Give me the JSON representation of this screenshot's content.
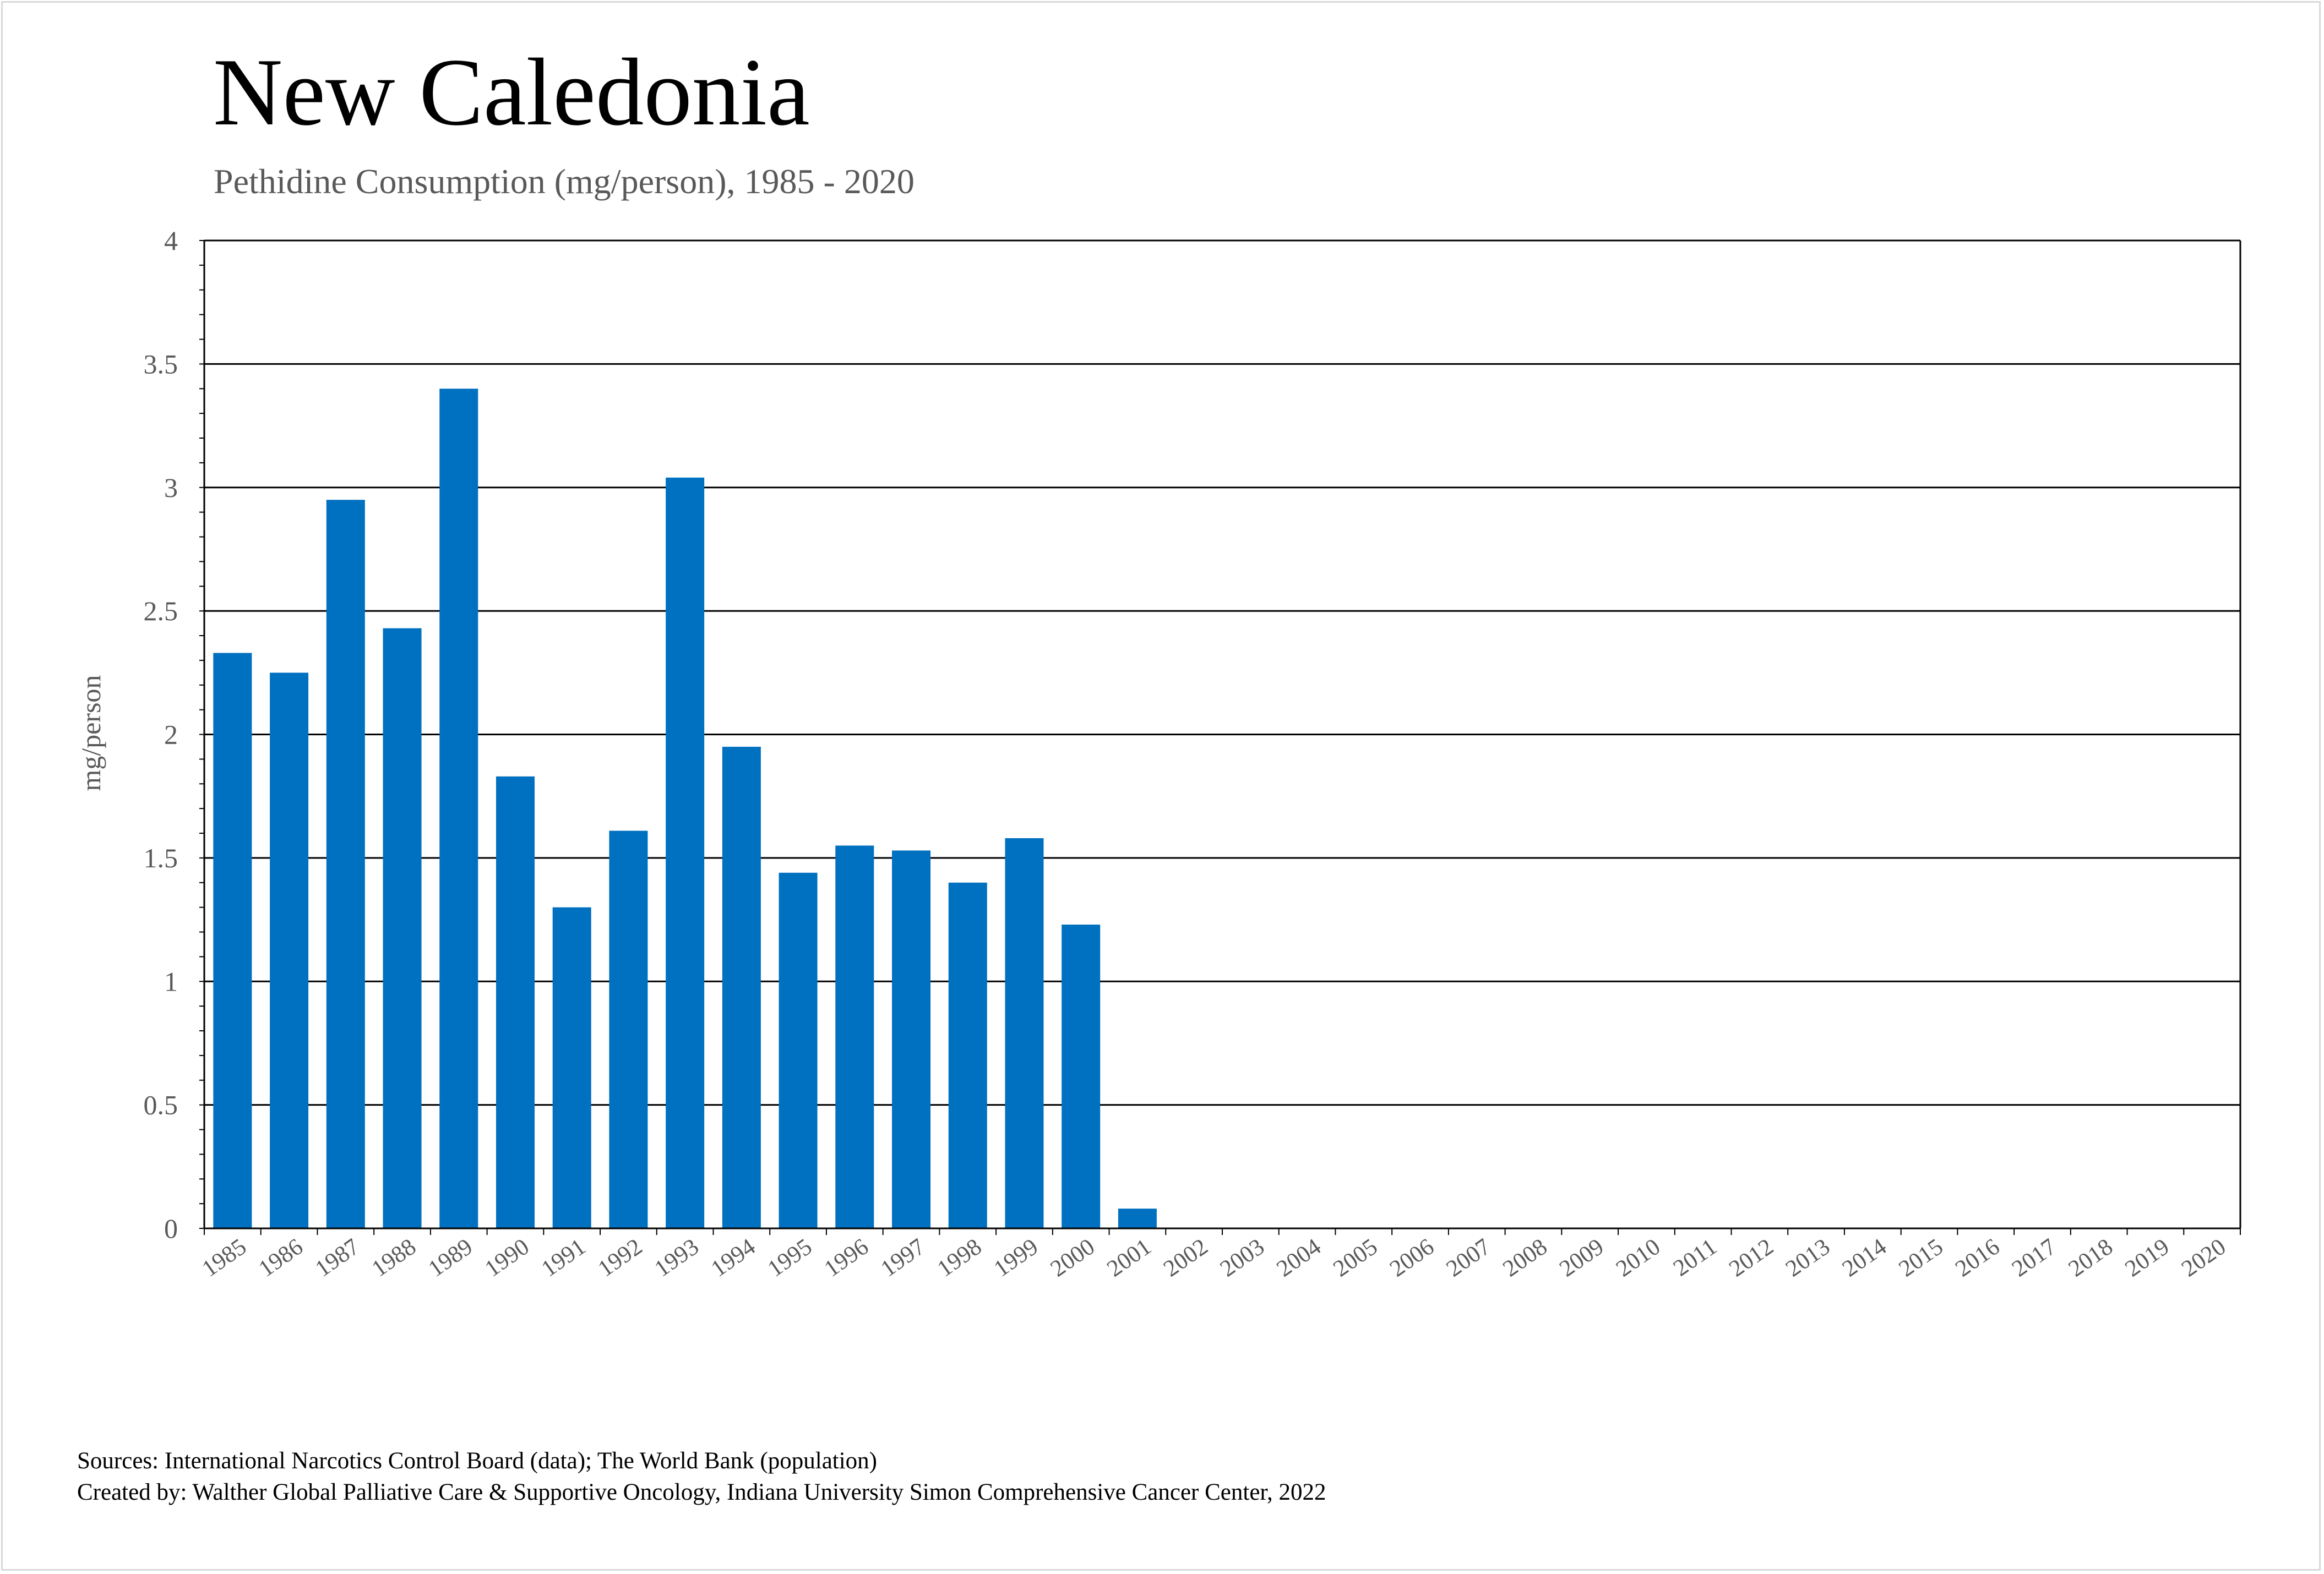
{
  "header": {
    "title": "New Caledonia",
    "subtitle": "Pethidine Consumption (mg/person), 1985 - 2020"
  },
  "footer": {
    "sources": "Sources: International Narcotics Control Board (data); The World Bank (population)",
    "created_by": "Created by: Walther Global Palliative Care & Supportive Oncology, Indiana University Simon Comprehensive Cancer Center, 2022"
  },
  "colors": {
    "bar": "#0070c0",
    "gridline": "#000000",
    "axis_text": "#595959",
    "frame": "#d9d9d9"
  },
  "chart_data": {
    "type": "bar",
    "title": "New Caledonia",
    "subtitle": "Pethidine Consumption (mg/person), 1985 - 2020",
    "xlabel": "",
    "ylabel": "mg/person",
    "ylim": [
      0,
      4
    ],
    "yticks": [
      "0",
      "0.5",
      "1",
      "1.5",
      "2",
      "2.5",
      "3",
      "3.5",
      "4"
    ],
    "grid": true,
    "categories": [
      "1985",
      "1986",
      "1987",
      "1988",
      "1989",
      "1990",
      "1991",
      "1992",
      "1993",
      "1994",
      "1995",
      "1996",
      "1997",
      "1998",
      "1999",
      "2000",
      "2001",
      "2002",
      "2003",
      "2004",
      "2005",
      "2006",
      "2007",
      "2008",
      "2009",
      "2010",
      "2011",
      "2012",
      "2013",
      "2014",
      "2015",
      "2016",
      "2017",
      "2018",
      "2019",
      "2020"
    ],
    "values": [
      2.33,
      2.25,
      2.95,
      2.43,
      3.4,
      1.83,
      1.3,
      1.61,
      3.04,
      1.95,
      1.44,
      1.55,
      1.53,
      1.4,
      1.58,
      1.23,
      0.08,
      0,
      0,
      0,
      0,
      0,
      0,
      0,
      0,
      0,
      0,
      0,
      0,
      0,
      0,
      0,
      0,
      0,
      0,
      0
    ]
  }
}
